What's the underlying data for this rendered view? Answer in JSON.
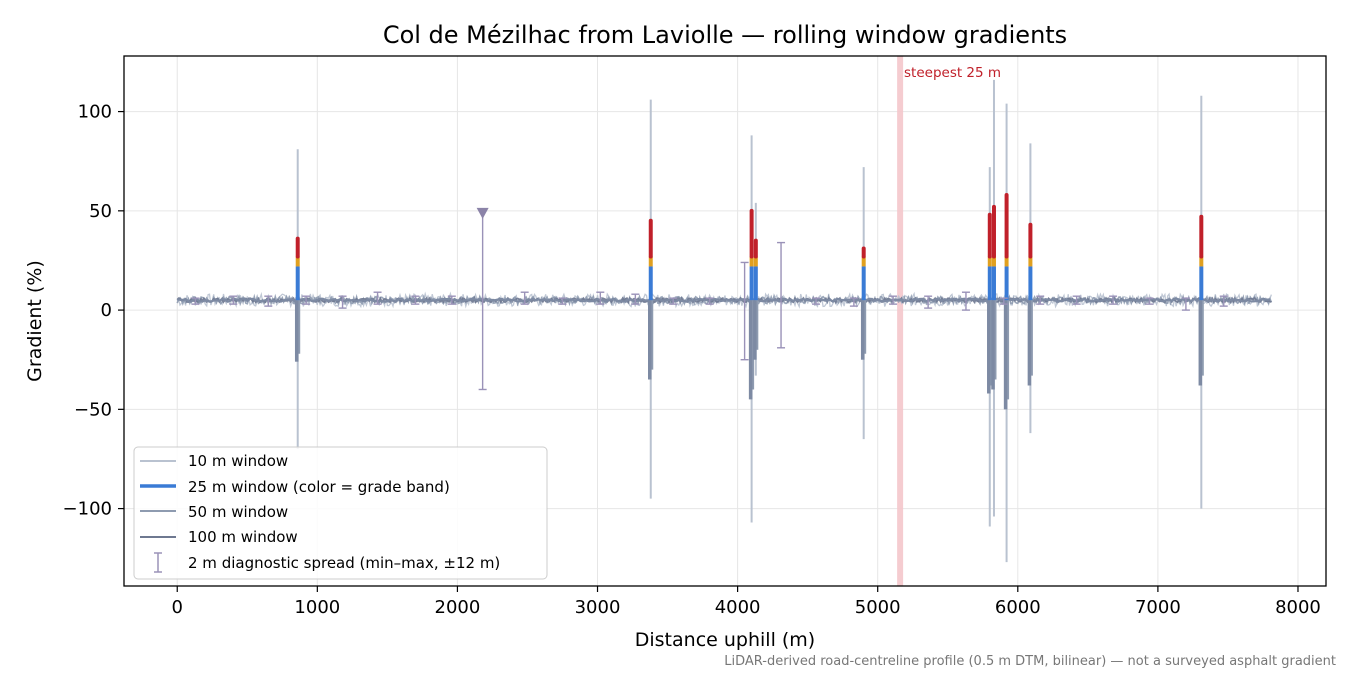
{
  "chart_data": {
    "type": "line",
    "title": "Col de Mézilhac from Laviolle — rolling window gradients",
    "xlabel": "Distance uphill (m)",
    "ylabel": "Gradient (%)",
    "xlim": [
      -380,
      8200
    ],
    "ylim": [
      -139,
      128
    ],
    "x_ticks": [
      0,
      1000,
      2000,
      3000,
      4000,
      5000,
      6000,
      7000,
      8000
    ],
    "x_tick_labels": [
      "0",
      "1000",
      "2000",
      "3000",
      "4000",
      "5000",
      "6000",
      "7000",
      "8000"
    ],
    "y_ticks": [
      100,
      50,
      0,
      -50,
      -100
    ],
    "y_tick_labels": [
      "100",
      "50",
      "0",
      "−50",
      "−100"
    ],
    "grid": true,
    "legend_position": "lower-left",
    "legend": [
      {
        "label": "10 m window",
        "style": "line",
        "color": "#b9c2d0",
        "width": 1.5
      },
      {
        "label": "25 m window (color = grade band)",
        "style": "line",
        "color": "#3a7bd5",
        "width": 3
      },
      {
        "label": "50 m window",
        "style": "line",
        "color": "#8e9bb0",
        "width": 1.5
      },
      {
        "label": "100 m window",
        "style": "line",
        "color": "#6e7890",
        "width": 1.5
      },
      {
        "label": "2 m diagnostic spread (min–max, ±12 m)",
        "style": "errorbar",
        "color": "#9a92b8",
        "width": 1.5
      }
    ],
    "baseline_gradient": 5,
    "x_max": 7810,
    "spikes": [
      {
        "x": 860,
        "y10_max": 81,
        "y10_min": -70,
        "y25_max": 36,
        "y25_min": -26,
        "y50_min": -22
      },
      {
        "x": 3380,
        "y10_max": 106,
        "y10_min": -95,
        "y25_max": 45,
        "y25_min": -35,
        "y50_min": -30
      },
      {
        "x": 4100,
        "y10_max": 88,
        "y10_min": -107,
        "y25_max": 50,
        "y25_min": -45,
        "y50_min": -40
      },
      {
        "x": 4130,
        "y10_max": 54,
        "y10_min": -33,
        "y25_max": 35,
        "y25_min": -25,
        "y50_min": -20
      },
      {
        "x": 4900,
        "y10_max": 72,
        "y10_min": -65,
        "y25_max": 31,
        "y25_min": -25,
        "y50_min": -22
      },
      {
        "x": 5800,
        "y10_max": 72,
        "y10_min": -109,
        "y25_max": 48,
        "y25_min": -42,
        "y50_min": -38
      },
      {
        "x": 5830,
        "y10_max": 116,
        "y10_min": -104,
        "y25_max": 52,
        "y25_min": -40,
        "y50_min": -35
      },
      {
        "x": 5920,
        "y10_max": 104,
        "y10_min": -127,
        "y25_max": 58,
        "y25_min": -50,
        "y50_min": -45
      },
      {
        "x": 6090,
        "y10_max": 84,
        "y10_min": -62,
        "y25_max": 43,
        "y25_min": -38,
        "y50_min": -33
      },
      {
        "x": 7310,
        "y10_max": 108,
        "y10_min": -100,
        "y25_max": 47,
        "y25_min": -38,
        "y50_min": -33
      }
    ],
    "diagnostic_spread": [
      {
        "x": 130,
        "min": 3,
        "max": 6
      },
      {
        "x": 400,
        "min": 3,
        "max": 7
      },
      {
        "x": 650,
        "min": 2,
        "max": 7
      },
      {
        "x": 920,
        "min": 3,
        "max": 7
      },
      {
        "x": 1180,
        "min": 1,
        "max": 7
      },
      {
        "x": 1430,
        "min": 3,
        "max": 9
      },
      {
        "x": 1700,
        "min": 3,
        "max": 7
      },
      {
        "x": 1960,
        "min": 3,
        "max": 7
      },
      {
        "x": 2180,
        "min": -40,
        "max": 50
      },
      {
        "x": 2480,
        "min": 3,
        "max": 9
      },
      {
        "x": 2750,
        "min": 3,
        "max": 6
      },
      {
        "x": 3020,
        "min": 3,
        "max": 9
      },
      {
        "x": 3270,
        "min": 3,
        "max": 8
      },
      {
        "x": 3540,
        "min": 3,
        "max": 6
      },
      {
        "x": 3800,
        "min": 3,
        "max": 6
      },
      {
        "x": 4050,
        "min": -25,
        "max": 24
      },
      {
        "x": 4310,
        "min": -19,
        "max": 34
      },
      {
        "x": 4560,
        "min": 3,
        "max": 6
      },
      {
        "x": 4830,
        "min": 2,
        "max": 6
      },
      {
        "x": 5110,
        "min": 3,
        "max": 7
      },
      {
        "x": 5360,
        "min": 1,
        "max": 7
      },
      {
        "x": 5630,
        "min": 0,
        "max": 9
      },
      {
        "x": 5900,
        "min": 3,
        "max": 6
      },
      {
        "x": 6160,
        "min": 3,
        "max": 7
      },
      {
        "x": 6420,
        "min": 3,
        "max": 7
      },
      {
        "x": 6680,
        "min": 3,
        "max": 7
      },
      {
        "x": 6940,
        "min": 3,
        "max": 6
      },
      {
        "x": 7200,
        "min": 0,
        "max": 6
      },
      {
        "x": 7470,
        "min": 2,
        "max": 7
      }
    ],
    "clipped_marker": {
      "x": 2180,
      "y": 49
    },
    "annotations": [
      {
        "text": "steepest 25 m",
        "x": 5160,
        "color": "#c0202a"
      }
    ],
    "footnote": "LiDAR-derived road-centreline profile (0.5 m DTM, bilinear) — not a surveyed asphalt gradient",
    "colors": {
      "band_low": "#3a7bd5",
      "band_mid": "#e0a020",
      "band_high": "#c0202a",
      "highlight": "#f4c7cb",
      "grid": "#e6e6e6"
    }
  }
}
